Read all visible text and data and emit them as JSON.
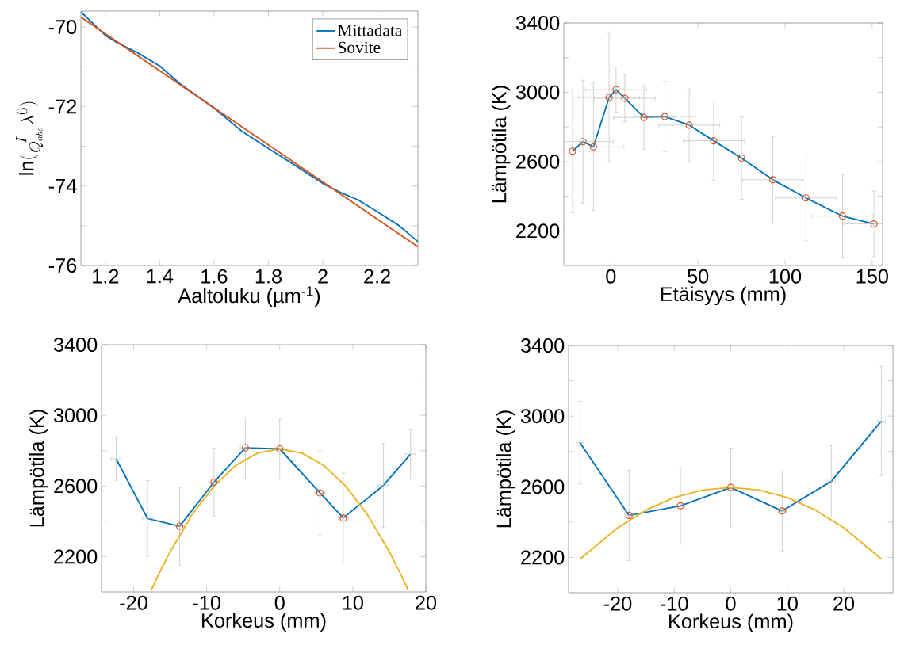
{
  "chart_data": [
    {
      "type": "line",
      "xlabel": "Aaltoluku (µm$^{-1}$)",
      "ylabel": "\\ln(\\frac{I}{Q_{abs}}\\lambda^{6})",
      "xlim": [
        1.11,
        2.35
      ],
      "ylim": [
        -76,
        -69.6
      ],
      "xticks": [
        1.2,
        1.4,
        1.6,
        1.8,
        2,
        2.2
      ],
      "yticks": [
        -76,
        {
          "value": -75,
          "label": null
        },
        -74,
        {
          "value": -73,
          "label": null
        },
        -72,
        {
          "value": -71,
          "label": null
        },
        -70
      ],
      "legend": "top right",
      "series": [
        {
          "name": "Mittadata",
          "color": "#0072bd",
          "x": [
            1.11,
            1.2,
            1.245,
            1.316,
            1.4,
            1.473,
            1.6,
            1.702,
            1.803,
            1.905,
            2.006,
            2.077,
            2.127,
            2.208,
            2.279,
            2.35
          ],
          "values": [
            -69.62,
            -70.21,
            -70.4,
            -70.64,
            -70.98,
            -71.42,
            -72.04,
            -72.62,
            -73.07,
            -73.51,
            -73.96,
            -74.2,
            -74.34,
            -74.68,
            -74.99,
            -75.4
          ]
        },
        {
          "name": "Sovite",
          "color": "#d95319",
          "x": [
            1.11,
            2.35
          ],
          "values": [
            -69.75,
            -75.53
          ]
        }
      ]
    },
    {
      "type": "line",
      "xlabel": "Etäisyys (mm)",
      "ylabel": "Lämpötila (K)",
      "xlim": [
        -27,
        156
      ],
      "ylim": [
        2000,
        3400
      ],
      "xticks": [
        0,
        50,
        100,
        150
      ],
      "yticks": [
        2200,
        {
          "value": 2400,
          "label": null
        },
        2600,
        {
          "value": 2800,
          "label": null
        },
        3000,
        {
          "value": 3200,
          "label": null
        },
        3400
      ],
      "series": [
        {
          "color": "#0072bd",
          "x": [
            -22,
            -16,
            -10,
            -1,
            3,
            8,
            19,
            31,
            45,
            59,
            75,
            93,
            112,
            133,
            151
          ],
          "values": [
            2660,
            2715,
            2685,
            2970,
            3015,
            2965,
            2855,
            2860,
            2810,
            2720,
            2620,
            2495,
            2390,
            2285,
            2240
          ],
          "errors": [
            355,
            355,
            368,
            370,
            130,
            137,
            184,
            203,
            210,
            228,
            238,
            250,
            247,
            238,
            190
          ],
          "xerrors": [
            17.5,
            17.5,
            17.5,
            17.5,
            17.5,
            17.5,
            17.5,
            17.5,
            17.5,
            17.5,
            17.5,
            17.5,
            17.5,
            17.5,
            17.5
          ]
        },
        {
          "type": "scatter",
          "marker": "circle",
          "color": "#d95319",
          "x": [
            -22,
            -16,
            -10,
            -1,
            3,
            8,
            19,
            31,
            45,
            59,
            75,
            93,
            112,
            133,
            151
          ],
          "values": [
            2660,
            2715,
            2685,
            2970,
            3015,
            2965,
            2855,
            2860,
            2810,
            2720,
            2620,
            2495,
            2390,
            2285,
            2240
          ]
        }
      ]
    },
    {
      "type": "line",
      "xlabel": "Korkeus (mm)",
      "ylabel": "Lämpötila (K)",
      "xlim": [
        -24.4,
        20
      ],
      "ylim": [
        2000,
        3400
      ],
      "xticks": [
        -20,
        -10,
        0,
        10,
        20
      ],
      "yticks": [
        2200,
        {
          "value": 2400,
          "label": null
        },
        2600,
        {
          "value": 2800,
          "label": null
        },
        3000,
        {
          "value": 3200,
          "label": null
        },
        3400
      ],
      "series": [
        {
          "color": "#0072bd",
          "x": [
            -22.4,
            -18.1,
            -13.7,
            -9,
            -4.7,
            0,
            5.5,
            8.7,
            14.2,
            17.9
          ],
          "values": [
            2754,
            2416,
            2372,
            2622,
            2816,
            2810,
            2561,
            2419,
            2604,
            2780
          ],
          "errors": [
            122,
            214,
            220,
            192,
            170,
            168,
            237,
            255,
            238,
            140
          ],
          "xerrors": [
            0.7,
            0.7,
            0.7,
            0.7,
            0.7,
            0.7,
            0.7,
            0.7,
            0.7,
            0.7
          ]
        },
        {
          "color": "#edb120",
          "x": [
            -17.6,
            -16.5,
            -15,
            -12,
            -9,
            -6,
            -3,
            0,
            3,
            6,
            9,
            12,
            15,
            16.5,
            17.6
          ],
          "values": [
            2009,
            2106,
            2228,
            2438,
            2601,
            2717,
            2787,
            2810,
            2787,
            2717,
            2601,
            2438,
            2228,
            2106,
            2009
          ]
        },
        {
          "type": "scatter",
          "marker": "circle",
          "color": "#d95319",
          "x": [
            -13.7,
            -9,
            -4.7,
            0,
            5.5,
            8.7
          ],
          "values": [
            2372,
            2622,
            2816,
            2810,
            2561,
            2419
          ]
        }
      ]
    },
    {
      "type": "line",
      "xlabel": "Korkeus (mm)",
      "ylabel": "Lämpötila (K)",
      "xlim": [
        -28.7,
        28.7
      ],
      "ylim": [
        2000,
        3400
      ],
      "xticks": [
        -20,
        -10,
        0,
        10,
        20
      ],
      "yticks": [
        2200,
        {
          "value": 2400,
          "label": null
        },
        2600,
        {
          "value": 2800,
          "label": null
        },
        3000,
        {
          "value": 3200,
          "label": null
        },
        3400
      ],
      "series": [
        {
          "color": "#0072bd",
          "x": [
            -26.7,
            -18,
            -8.9,
            0,
            9.1,
            17.8,
            26.65
          ],
          "values": [
            2850,
            2438,
            2492,
            2596,
            2463,
            2631,
            2972
          ],
          "errors": [
            234,
            256,
            217,
            223,
            226,
            203,
            311
          ],
          "xerrors": [
            0.7,
            0.7,
            0.7,
            0.7,
            0.7,
            0.7,
            0.7
          ]
        },
        {
          "color": "#edb120",
          "x": [
            -26.7,
            -20,
            -15,
            -10,
            -5,
            0,
            5,
            10,
            15,
            20,
            26.7
          ],
          "values": [
            2190,
            2368,
            2468,
            2539,
            2582,
            2596,
            2582,
            2539,
            2468,
            2368,
            2190
          ]
        },
        {
          "type": "scatter",
          "marker": "circle",
          "color": "#d95319",
          "x": [
            -18,
            -8.9,
            0,
            9.1
          ],
          "values": [
            2438,
            2492,
            2596,
            2463
          ]
        }
      ]
    }
  ]
}
